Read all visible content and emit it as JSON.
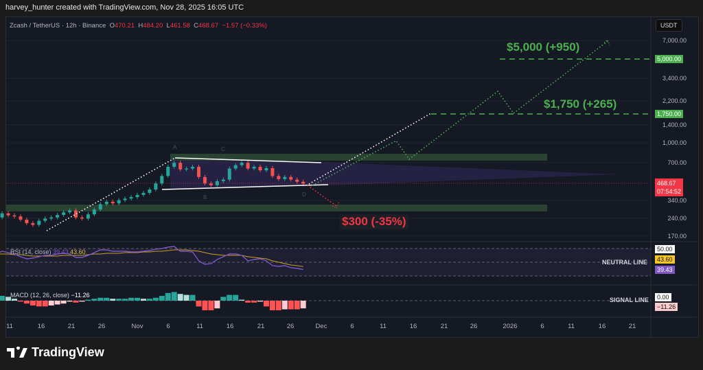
{
  "header": {
    "credit": "harvey_hunter created with TradingView.com, Nov 28, 2025 16:05 UTC"
  },
  "legend": {
    "symbol": "Zcash / TetherUS · 12h · Binance",
    "o_label": "O",
    "o": "470.21",
    "h_label": "H",
    "h": "484.20",
    "l_label": "L",
    "l": "461.58",
    "c_label": "C",
    "c": "468.67",
    "change": "−1.57 (−0.33%)"
  },
  "price_axis": {
    "currency": "USDT",
    "ticks": [
      "7,000.00",
      "3,400.00",
      "2,200.00",
      "1,400.00",
      "1,000.00",
      "700.00",
      "340.00",
      "240.00",
      "170.00"
    ],
    "badges": {
      "target_high": "5,000.00",
      "target_mid": "1,750.00",
      "last_price": "468.67",
      "countdown": "07:54:52"
    }
  },
  "annotations": {
    "target_high": "$5,000 (+950)",
    "target_mid": "$1,750 (+265)",
    "target_low": "$300 (-35%)",
    "points": [
      "A",
      "B",
      "C",
      "D"
    ]
  },
  "rsi": {
    "label": "RSI (14, close)",
    "value": "39.43",
    "ma": "43.60",
    "level": "50.00",
    "line_label": "NEUTRAL LINE"
  },
  "macd": {
    "label": "MACD (12, 26, close)",
    "value": "−11.26",
    "zero": "0.00",
    "line_label": "SIGNAL LINE"
  },
  "x_axis": {
    "labels": [
      "11",
      "16",
      "21",
      "26",
      "Nov",
      "6",
      "11",
      "16",
      "21",
      "26",
      "Dec",
      "6",
      "11",
      "16",
      "21",
      "26",
      "2026",
      "6",
      "11",
      "16",
      "21"
    ]
  },
  "footer": {
    "brand": "TradingView"
  },
  "colors": {
    "up": "#26a69a",
    "down": "#ef5350",
    "target": "#4caf50",
    "rsi": "#7e57c2",
    "rsi_ma": "#c9a227"
  },
  "chart_data": {
    "type": "candlestick",
    "scale": "log",
    "start_date": "2025-10-09",
    "close": [
      250,
      270,
      260,
      255,
      240,
      225,
      218,
      235,
      245,
      250,
      262,
      275,
      285,
      250,
      245,
      265,
      290,
      320,
      335,
      325,
      345,
      355,
      365,
      380,
      395,
      420,
      470,
      540,
      640,
      690,
      610,
      620,
      640,
      530,
      470,
      455,
      490,
      505,
      620,
      660,
      690,
      620,
      640,
      600,
      625,
      540,
      510,
      530,
      505,
      485,
      468.67
    ],
    "rsi": [
      62,
      66,
      64,
      62,
      58,
      55,
      56,
      58,
      60,
      60,
      62,
      63,
      62,
      57,
      57,
      60,
      64,
      68,
      68,
      66,
      66,
      66,
      65,
      65,
      66,
      67,
      69,
      70,
      72,
      73,
      66,
      66,
      65,
      52,
      47,
      48,
      54,
      58,
      62,
      62,
      60,
      52,
      54,
      55,
      52,
      45,
      44,
      45,
      42,
      41,
      39.43
    ],
    "rsi_ma": [
      62,
      62,
      62,
      61,
      61,
      60,
      59,
      59,
      59,
      59,
      59,
      60,
      60,
      60,
      60,
      61,
      62,
      62,
      63,
      63,
      63,
      64,
      64,
      64,
      65,
      65,
      66,
      66,
      67,
      68,
      68,
      68,
      67,
      66,
      64,
      62,
      61,
      60,
      60,
      60,
      60,
      58,
      57,
      56,
      55,
      52,
      50,
      48,
      46,
      45,
      43.6
    ],
    "macd_hist": [
      4,
      5,
      4,
      2,
      -1,
      -3,
      -5,
      -6,
      -6,
      -5,
      -4,
      -3,
      -1,
      -2,
      -1,
      1,
      2,
      3,
      3,
      2,
      2,
      2,
      3,
      3,
      2,
      2,
      3,
      5,
      8,
      9,
      7,
      6,
      6,
      -6,
      -10,
      -10,
      -8,
      4,
      6,
      6,
      1,
      -2,
      -2,
      -1,
      -6,
      -10,
      -10,
      -9,
      -9,
      -9,
      -8
    ]
  }
}
